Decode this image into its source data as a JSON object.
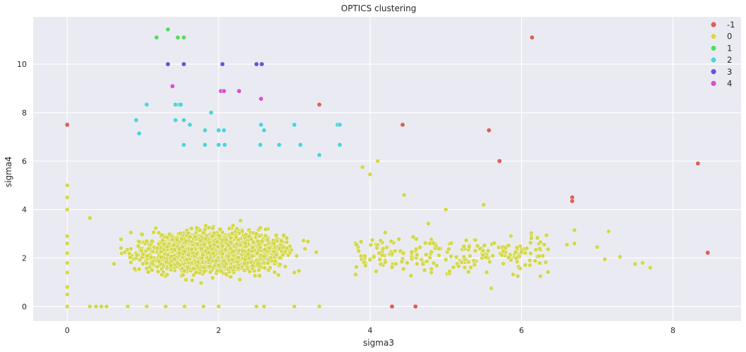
{
  "chart_data": {
    "type": "scatter",
    "title": "OPTICS clustering",
    "xlabel": "sigma3",
    "ylabel": "sigma4",
    "xlim": [
      -0.45,
      8.9
    ],
    "ylim": [
      -0.6,
      11.95
    ],
    "xticks": [
      0,
      2,
      4,
      6,
      8
    ],
    "yticks": [
      0,
      2,
      4,
      6,
      8,
      10
    ],
    "grid": true,
    "legend_position": "top-right",
    "background": "#eaeaf2",
    "series": [
      {
        "name": "-1",
        "color": "#db5f57",
        "points": [
          [
            0.0,
            7.5
          ],
          [
            3.33,
            8.33
          ],
          [
            4.43,
            7.5
          ],
          [
            5.57,
            7.27
          ],
          [
            5.71,
            6.0
          ],
          [
            6.14,
            11.1
          ],
          [
            6.67,
            4.5
          ],
          [
            6.67,
            4.35
          ],
          [
            8.33,
            5.9
          ],
          [
            8.46,
            2.22
          ],
          [
            4.29,
            0.0
          ],
          [
            4.6,
            0.0
          ]
        ]
      },
      {
        "name": "0",
        "color": "#d3d84e",
        "points": []
      },
      {
        "name": "1",
        "color": "#57db5f",
        "points": [
          [
            1.18,
            11.1
          ],
          [
            1.33,
            11.43
          ],
          [
            1.46,
            11.1
          ],
          [
            1.54,
            11.1
          ]
        ]
      },
      {
        "name": "2",
        "color": "#4fd3d8",
        "points": [
          [
            0.91,
            7.69
          ],
          [
            0.95,
            7.14
          ],
          [
            1.05,
            8.33
          ],
          [
            1.43,
            8.33
          ],
          [
            1.48,
            8.33
          ],
          [
            1.5,
            8.33
          ],
          [
            1.54,
            7.69
          ],
          [
            1.62,
            7.5
          ],
          [
            1.54,
            6.67
          ],
          [
            1.9,
            8.0
          ],
          [
            1.82,
            7.27
          ],
          [
            2.0,
            7.27
          ],
          [
            2.07,
            7.27
          ],
          [
            1.82,
            6.67
          ],
          [
            2.0,
            6.67
          ],
          [
            2.08,
            6.67
          ],
          [
            2.56,
            7.5
          ],
          [
            2.6,
            7.27
          ],
          [
            2.55,
            6.67
          ],
          [
            2.8,
            6.67
          ],
          [
            3.0,
            7.5
          ],
          [
            3.08,
            6.67
          ],
          [
            3.33,
            6.25
          ],
          [
            3.57,
            7.5
          ],
          [
            3.6,
            7.5
          ],
          [
            3.6,
            6.67
          ],
          [
            1.43,
            7.69
          ]
        ]
      },
      {
        "name": "3",
        "color": "#5f57db",
        "points": [
          [
            1.33,
            10.0
          ],
          [
            1.54,
            10.0
          ],
          [
            2.05,
            10.0
          ],
          [
            2.5,
            10.0
          ],
          [
            2.57,
            10.0
          ]
        ]
      },
      {
        "name": "4",
        "color": "#d84fd3",
        "points": [
          [
            1.39,
            9.09
          ],
          [
            2.03,
            8.89
          ],
          [
            2.07,
            8.89
          ],
          [
            2.27,
            8.89
          ],
          [
            2.56,
            8.57
          ]
        ]
      }
    ]
  }
}
